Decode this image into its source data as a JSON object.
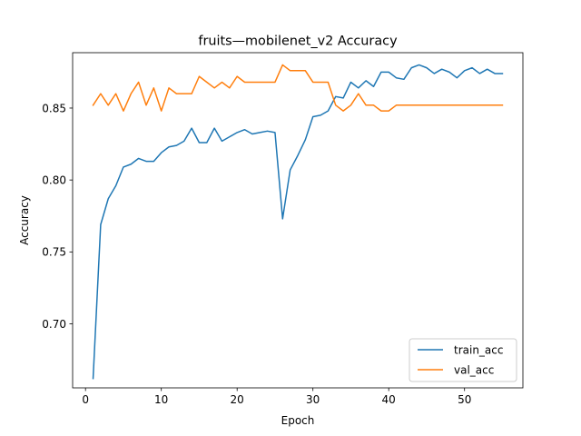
{
  "chart_data": {
    "type": "line",
    "title": "fruits—mobilenet_v2 Accuracy",
    "xlabel": "Epoch",
    "ylabel": "Accuracy",
    "xlim": [
      -1.7,
      57.7
    ],
    "ylim": [
      0.6555,
      0.8885
    ],
    "xticks": [
      0,
      10,
      20,
      30,
      40,
      50
    ],
    "yticks": [
      0.7,
      0.75,
      0.8,
      0.85
    ],
    "ytick_labels": [
      "0.70",
      "0.75",
      "0.80",
      "0.85"
    ],
    "legend_position": "lower-right",
    "grid": false,
    "x": [
      1,
      2,
      3,
      4,
      5,
      6,
      7,
      8,
      9,
      10,
      11,
      12,
      13,
      14,
      15,
      16,
      17,
      18,
      19,
      20,
      21,
      22,
      23,
      24,
      25,
      26,
      27,
      28,
      29,
      30,
      31,
      32,
      33,
      34,
      35,
      36,
      37,
      38,
      39,
      40,
      41,
      42,
      43,
      44,
      45,
      46,
      47,
      48,
      49,
      50,
      51,
      52,
      53,
      54,
      55
    ],
    "series": [
      {
        "name": "train_acc",
        "color": "#1f77b4",
        "values": [
          0.662,
          0.769,
          0.787,
          0.796,
          0.809,
          0.811,
          0.815,
          0.813,
          0.813,
          0.819,
          0.823,
          0.824,
          0.827,
          0.836,
          0.826,
          0.826,
          0.836,
          0.827,
          0.83,
          0.833,
          0.835,
          0.832,
          0.833,
          0.834,
          0.833,
          0.773,
          0.807,
          0.817,
          0.828,
          0.844,
          0.845,
          0.848,
          0.858,
          0.857,
          0.868,
          0.864,
          0.869,
          0.865,
          0.875,
          0.875,
          0.871,
          0.87,
          0.878,
          0.88,
          0.878,
          0.874,
          0.877,
          0.875,
          0.871,
          0.876,
          0.878,
          0.874,
          0.877,
          0.874,
          0.874
        ]
      },
      {
        "name": "val_acc",
        "color": "#ff7f0e",
        "values": [
          0.852,
          0.86,
          0.852,
          0.86,
          0.848,
          0.86,
          0.868,
          0.852,
          0.864,
          0.848,
          0.864,
          0.86,
          0.86,
          0.86,
          0.872,
          0.868,
          0.864,
          0.868,
          0.864,
          0.872,
          0.868,
          0.868,
          0.868,
          0.868,
          0.868,
          0.88,
          0.876,
          0.876,
          0.876,
          0.868,
          0.868,
          0.868,
          0.852,
          0.848,
          0.852,
          0.86,
          0.852,
          0.852,
          0.848,
          0.848,
          0.852,
          0.852,
          0.852,
          0.852,
          0.852,
          0.852,
          0.852,
          0.852,
          0.852,
          0.852,
          0.852,
          0.852,
          0.852,
          0.852,
          0.852
        ]
      }
    ]
  }
}
